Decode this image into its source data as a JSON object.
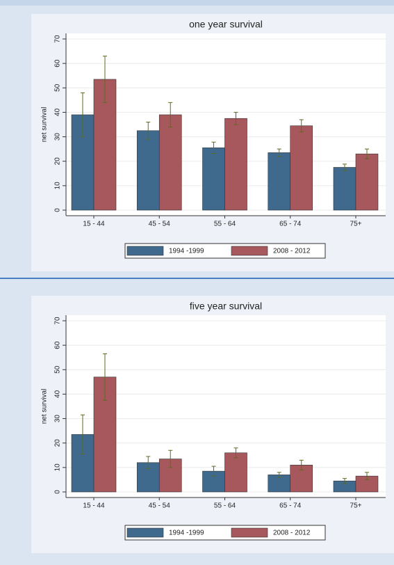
{
  "chart_data": [
    {
      "type": "bar",
      "title": "one year survival",
      "y_label": "net survival",
      "categories": [
        "15 - 44",
        "45 - 54",
        "55 - 64",
        "65 - 74",
        "75+"
      ],
      "series": [
        {
          "name": "1994 -1999",
          "color": "#3f6a8e",
          "values": [
            39,
            32.5,
            25.5,
            23.5,
            17.5
          ],
          "errors": [
            9,
            3.5,
            2.3,
            1.5,
            1.3
          ]
        },
        {
          "name": "2008 - 2012",
          "color": "#a6585c",
          "values": [
            53.5,
            39,
            37.5,
            34.5,
            23
          ],
          "errors": [
            9.5,
            5,
            2.5,
            2.5,
            2
          ]
        }
      ],
      "error_color": "#5b6b1c",
      "ylim": [
        0,
        70
      ],
      "yticks": [
        0,
        10,
        20,
        30,
        40,
        50,
        60,
        70
      ],
      "grid": true,
      "legend": "bottom"
    },
    {
      "type": "bar",
      "title": "five year survival",
      "y_label": "net survival",
      "categories": [
        "15 - 44",
        "45 - 54",
        "55 - 64",
        "65 - 74",
        "75+"
      ],
      "series": [
        {
          "name": "1994 -1999",
          "color": "#3f6a8e",
          "values": [
            23.5,
            12,
            8.5,
            7,
            4.5
          ],
          "errors": [
            8,
            2.5,
            2,
            1,
            1
          ]
        },
        {
          "name": "2008 - 2012",
          "color": "#a6585c",
          "values": [
            47,
            13.5,
            16,
            11,
            6.5
          ],
          "errors": [
            9.5,
            3.5,
            2,
            2,
            1.5
          ]
        }
      ],
      "error_color": "#5b6b1c",
      "ylim": [
        0,
        70
      ],
      "yticks": [
        0,
        10,
        20,
        30,
        40,
        50,
        60,
        70
      ],
      "grid": true,
      "legend": "bottom"
    }
  ]
}
